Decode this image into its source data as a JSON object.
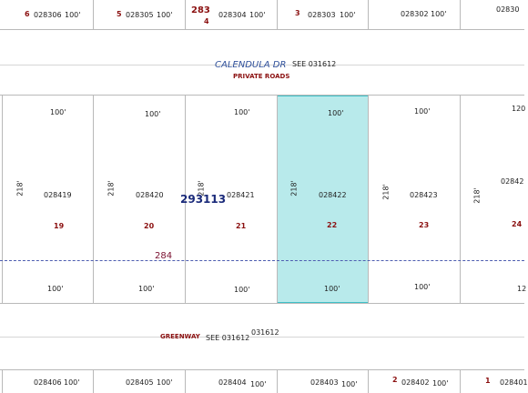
{
  "top_row": [
    {
      "lot": "6",
      "parcel": "028306",
      "frontage": "100'"
    },
    {
      "lot": "5",
      "parcel": "028305",
      "frontage": "100'"
    },
    {
      "lot": "4",
      "parcel": "028304",
      "frontage": "100'",
      "block_label": "283"
    },
    {
      "lot": "3",
      "parcel": "028303",
      "frontage": "100'"
    },
    {
      "lot": "",
      "parcel": "028302",
      "frontage": "100'"
    },
    {
      "lot": "",
      "parcel": "02830",
      "frontage": ""
    }
  ],
  "road_top": {
    "name": "CALENDULA DR",
    "see": "SEE 031612",
    "note": "PRIVATE ROADS"
  },
  "block_number": "293113",
  "block_284": "284",
  "middle_row": [
    {
      "lot": "19",
      "parcel": "028419",
      "side": "218'",
      "front_top": "100'",
      "front_bottom": "100'"
    },
    {
      "lot": "20",
      "parcel": "028420",
      "side": "218'",
      "front_top": "100'",
      "front_bottom": "100'"
    },
    {
      "lot": "21",
      "parcel": "028421",
      "side": "218'",
      "front_top": "100'",
      "front_bottom": "100'"
    },
    {
      "lot": "22",
      "parcel": "028422",
      "side": "218'",
      "front_top": "100'",
      "front_bottom": "100'",
      "selected": true
    },
    {
      "lot": "23",
      "parcel": "028423",
      "side": "218'",
      "front_top": "100'",
      "front_bottom": "100'"
    },
    {
      "lot": "24",
      "parcel": "02842",
      "side": "218'",
      "front_top": "120",
      "front_bottom": "12"
    }
  ],
  "road_bottom": {
    "name": "GREENWAY",
    "see": "SEE 031612",
    "see_extra": "031612"
  },
  "bottom_row": [
    {
      "lot": "",
      "parcel": "028406",
      "frontage": "100'"
    },
    {
      "lot": "",
      "parcel": "028405",
      "frontage": "100'"
    },
    {
      "lot": "",
      "parcel": "028404",
      "frontage": "100'"
    },
    {
      "lot": "",
      "parcel": "028403",
      "frontage": "100'"
    },
    {
      "lot": "2",
      "parcel": "028402",
      "frontage": "100'"
    },
    {
      "lot": "1",
      "parcel": "028401",
      "frontage": ""
    }
  ],
  "colors": {
    "selected_fill": "#b8eaeb",
    "selected_border": "#3fc0c8",
    "lot_number": "#8b1010",
    "road_name": "#2e4f9a",
    "block_number": "#1a2a7a"
  }
}
